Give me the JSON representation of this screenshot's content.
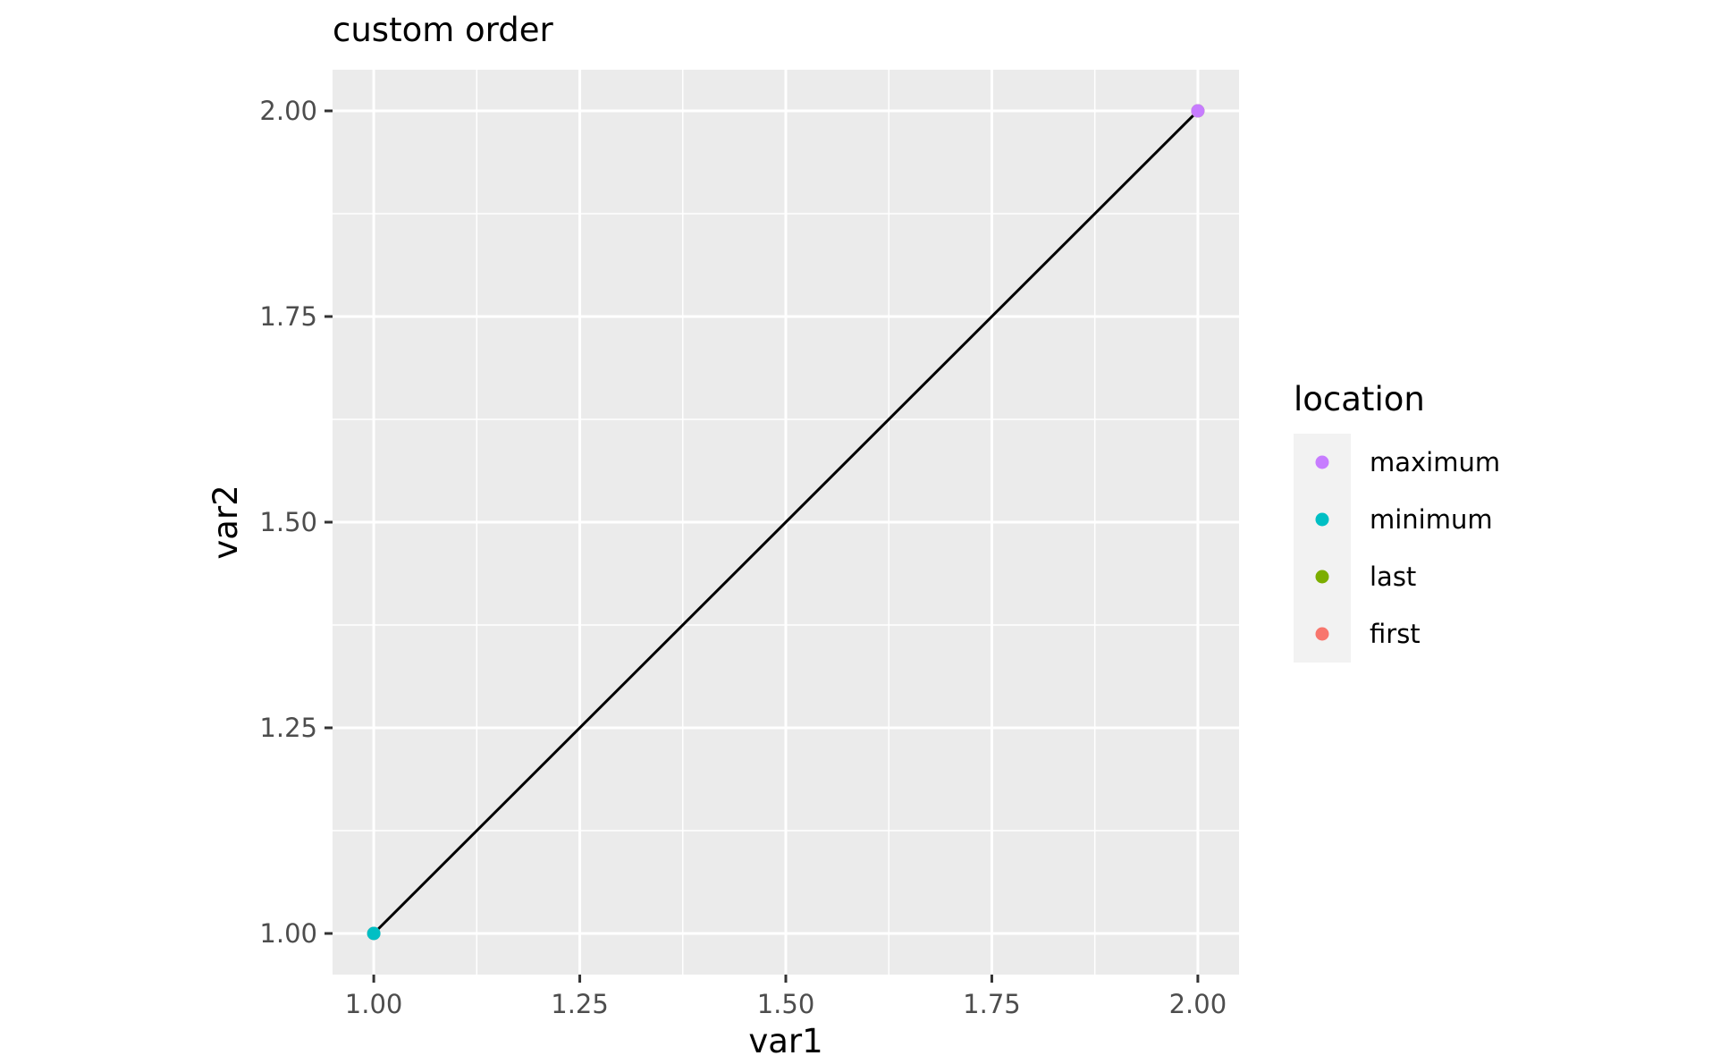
{
  "chart_data": {
    "type": "scatter",
    "title": "custom order",
    "xlabel": "var1",
    "ylabel": "var2",
    "xlim": [
      0.95,
      2.05
    ],
    "ylim": [
      0.95,
      2.05
    ],
    "x_ticks": [
      1.0,
      1.25,
      1.5,
      1.75,
      2.0
    ],
    "y_ticks": [
      1.0,
      1.25,
      1.5,
      1.75,
      2.0
    ],
    "x_tick_labels": [
      "1.00",
      "1.25",
      "1.50",
      "1.75",
      "2.00"
    ],
    "y_tick_labels": [
      "1.00",
      "1.25",
      "1.50",
      "1.75",
      "2.00"
    ],
    "grid": true,
    "line": {
      "x": [
        1.0,
        2.0
      ],
      "y": [
        1.0,
        2.0
      ],
      "color": "#000000"
    },
    "points": [
      {
        "x": 1.0,
        "y": 1.0,
        "location": "first"
      },
      {
        "x": 2.0,
        "y": 2.0,
        "location": "last"
      },
      {
        "x": 1.0,
        "y": 1.0,
        "location": "minimum"
      },
      {
        "x": 2.0,
        "y": 2.0,
        "location": "maximum"
      }
    ],
    "legend": {
      "title": "location",
      "placement": "right",
      "entries": [
        {
          "label": "maximum",
          "color": "#C77CFF"
        },
        {
          "label": "minimum",
          "color": "#00BFC4"
        },
        {
          "label": "last",
          "color": "#7CAE00"
        },
        {
          "label": "first",
          "color": "#F8766D"
        }
      ]
    }
  }
}
